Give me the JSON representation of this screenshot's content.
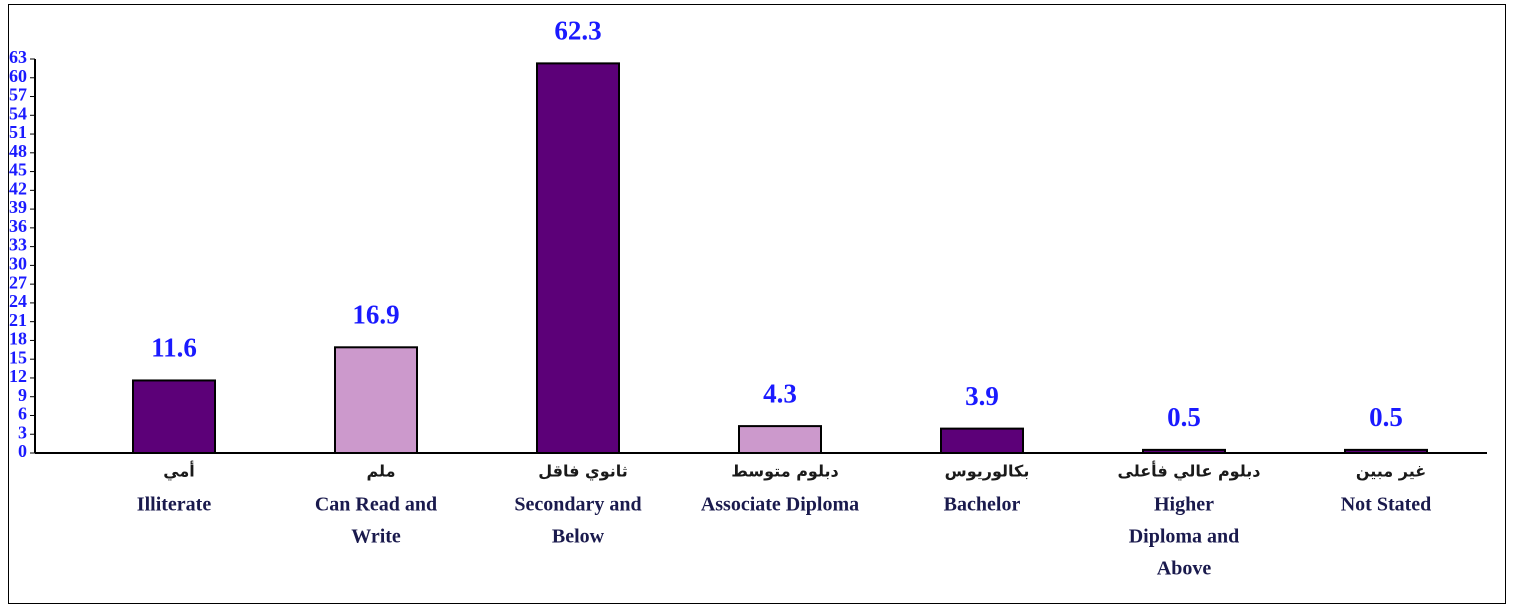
{
  "chart_data": {
    "type": "bar",
    "categories": [
      [
        "أمي",
        "Illiterate"
      ],
      [
        "ملم",
        "Can Read and",
        "Write"
      ],
      [
        "ثانوي فاقل",
        "Secondary and",
        "Below"
      ],
      [
        "دبلوم متوسط",
        "Associate Diploma"
      ],
      [
        "بكالوريوس",
        "Bachelor"
      ],
      [
        "دبلوم عالي فأعلى",
        "Higher",
        "Diploma and",
        "Above"
      ],
      [
        "غير مبين",
        "Not Stated"
      ]
    ],
    "values": [
      11.6,
      16.9,
      62.3,
      4.3,
      3.9,
      0.5,
      0.5
    ],
    "colors": [
      "#5c0078",
      "#cc99cc",
      "#5c0078",
      "#cc99cc",
      "#5c0078",
      "#5c0078",
      "#5c0078"
    ],
    "ylim": [
      0,
      63
    ],
    "yticks": [
      0,
      3,
      6,
      9,
      12,
      15,
      18,
      21,
      24,
      27,
      30,
      33,
      36,
      39,
      42,
      45,
      48,
      51,
      54,
      57,
      60,
      63
    ]
  }
}
